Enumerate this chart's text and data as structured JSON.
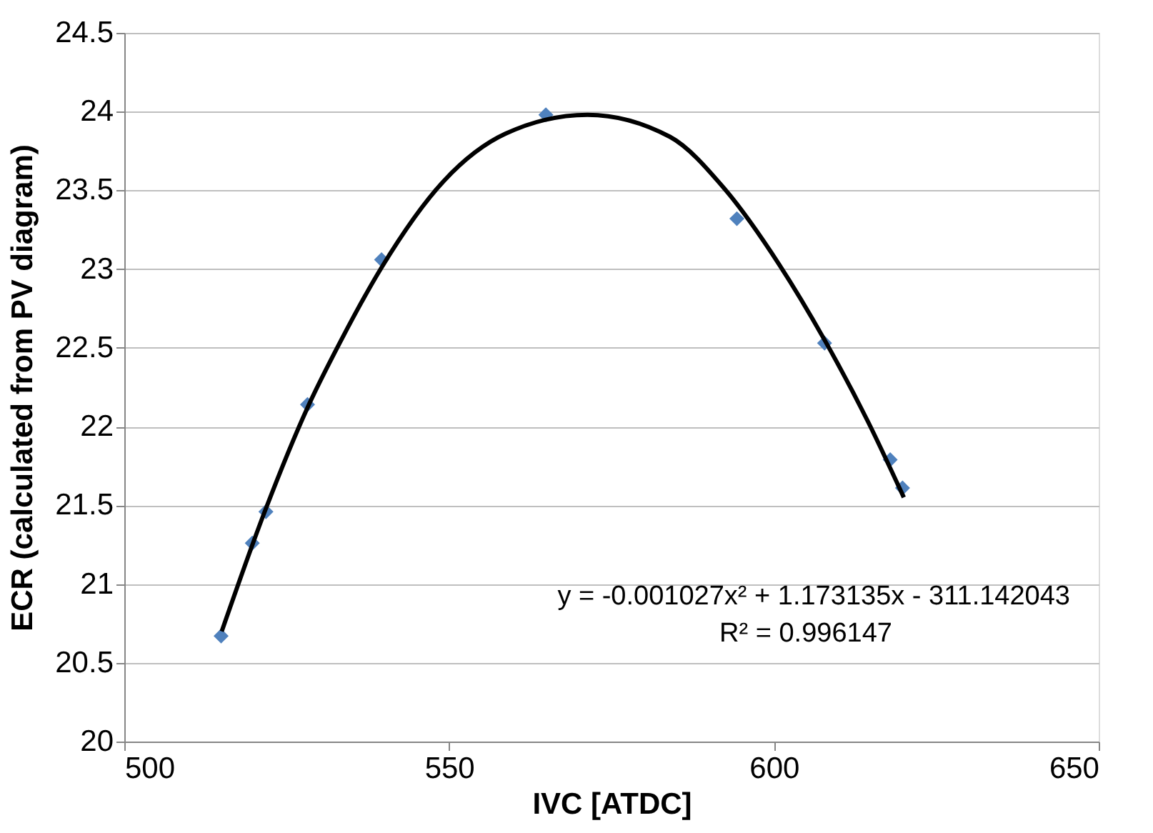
{
  "chart_data": {
    "type": "scatter",
    "xlabel": "IVC [ATDC]",
    "ylabel": "ECR (calculated from PV diagram)",
    "xlim": [
      500,
      650
    ],
    "xticks": [
      500,
      550,
      600,
      650
    ],
    "ylim": [
      20,
      24.5
    ],
    "yticks": [
      20,
      20.5,
      21,
      21.5,
      22,
      22.5,
      23,
      23.5,
      24,
      24.5
    ],
    "grid": "y",
    "series": [
      {
        "color": "#4f81bd",
        "marker": "diamond",
        "x": [
          514.9,
          519.7,
          521.8,
          528.2,
          539.6,
          564.9,
          594.3,
          607.8,
          617.9,
          619.8
        ],
        "values": [
          20.67,
          21.26,
          21.46,
          22.14,
          23.06,
          23.98,
          23.32,
          22.53,
          21.79,
          21.61
        ]
      },
      {
        "type": "line",
        "color": "#000000",
        "marker": "none",
        "line_style": "solid",
        "x": [
          515,
          521.8,
          528.2,
          533.4,
          539.6,
          549.2,
          558.7,
          571.3,
          584,
          592.4,
          600.8,
          607.8,
          614.5,
          620
        ],
        "values": [
          20.7,
          21.48,
          22.12,
          22.55,
          23.01,
          23.56,
          23.86,
          23.98,
          23.84,
          23.51,
          23.03,
          22.55,
          22.03,
          21.55
        ]
      }
    ],
    "annotations": [
      "y = -0.001027x² + 1.173135x - 311.142043",
      "R² = 0.996147"
    ]
  }
}
